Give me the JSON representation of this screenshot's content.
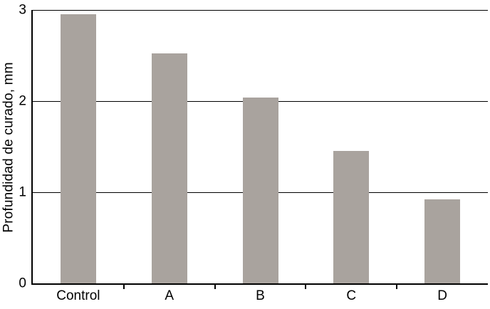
{
  "chart_data": {
    "type": "bar",
    "categories": [
      "Control",
      "A",
      "B",
      "C",
      "D"
    ],
    "values": [
      2.95,
      2.52,
      2.04,
      1.45,
      0.92
    ],
    "title": "",
    "xlabel": "",
    "ylabel": "Profundidad de curado, mm",
    "ylim": [
      0,
      3
    ],
    "yticks": [
      0,
      1,
      2,
      3
    ],
    "bar_color": "#a9a39e",
    "axis_color": "#000000",
    "grid": true,
    "legend": "none"
  }
}
